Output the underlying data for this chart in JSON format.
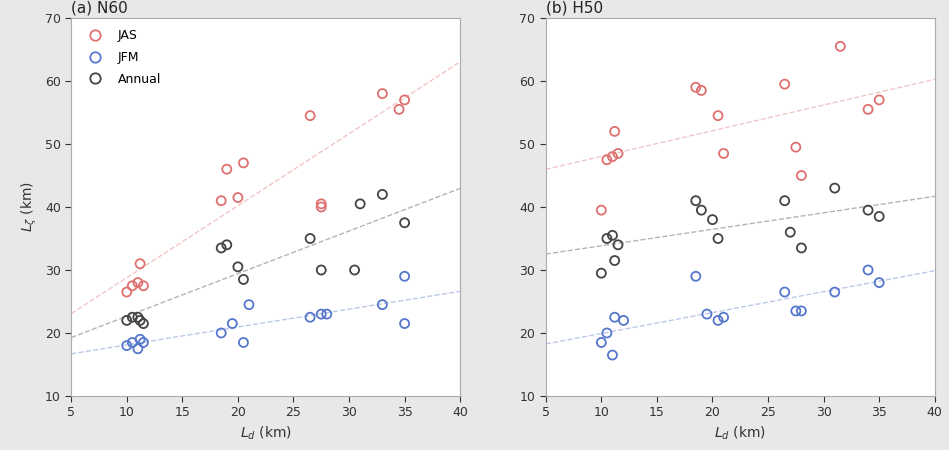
{
  "panel_a_title": "(a) N60",
  "panel_b_title": "(b) H50",
  "xlabel": "$L_d$ (km)",
  "ylabel": "$L_\\zeta$ (km)",
  "xlim": [
    5,
    40
  ],
  "ylim": [
    10,
    70
  ],
  "xticks": [
    5,
    10,
    15,
    20,
    25,
    30,
    35,
    40
  ],
  "yticks": [
    10,
    20,
    30,
    40,
    50,
    60,
    70
  ],
  "N60": {
    "JAS_x": [
      10.0,
      10.5,
      11.0,
      11.2,
      11.5,
      18.5,
      19.0,
      20.0,
      20.5,
      26.5,
      27.5,
      27.5,
      33.0,
      34.5,
      35.0
    ],
    "JAS_y": [
      26.5,
      27.5,
      28.0,
      31.0,
      27.5,
      41.0,
      46.0,
      41.5,
      47.0,
      54.5,
      40.0,
      40.5,
      58.0,
      55.5,
      57.0
    ],
    "JFM_x": [
      10.0,
      10.5,
      11.0,
      11.2,
      11.5,
      18.5,
      19.5,
      20.5,
      21.0,
      26.5,
      27.5,
      28.0,
      33.0,
      35.0,
      35.0
    ],
    "JFM_y": [
      18.0,
      18.5,
      17.5,
      19.0,
      18.5,
      20.0,
      21.5,
      18.5,
      24.5,
      22.5,
      23.0,
      23.0,
      24.5,
      29.0,
      21.5
    ],
    "Annual_x": [
      10.0,
      10.5,
      11.0,
      11.2,
      11.5,
      18.5,
      19.0,
      20.0,
      20.5,
      26.5,
      27.5,
      30.5,
      31.0,
      33.0,
      35.0
    ],
    "Annual_y": [
      22.0,
      22.5,
      22.5,
      22.0,
      21.5,
      33.5,
      34.0,
      30.5,
      28.5,
      35.0,
      30.0,
      30.0,
      40.5,
      42.0,
      37.5
    ]
  },
  "H50": {
    "JAS_x": [
      10.0,
      10.5,
      11.0,
      11.2,
      11.5,
      18.5,
      19.0,
      20.5,
      21.0,
      26.5,
      27.5,
      28.0,
      31.5,
      34.0,
      35.0
    ],
    "JAS_y": [
      39.5,
      47.5,
      48.0,
      52.0,
      48.5,
      59.0,
      58.5,
      54.5,
      48.5,
      59.5,
      49.5,
      45.0,
      65.5,
      55.5,
      57.0
    ],
    "JFM_x": [
      10.0,
      10.5,
      11.0,
      11.2,
      12.0,
      18.5,
      19.5,
      20.5,
      21.0,
      26.5,
      27.5,
      28.0,
      31.0,
      34.0,
      35.0
    ],
    "JFM_y": [
      18.5,
      20.0,
      16.5,
      22.5,
      22.0,
      29.0,
      23.0,
      22.0,
      22.5,
      26.5,
      23.5,
      23.5,
      26.5,
      30.0,
      28.0
    ],
    "Annual_x": [
      10.0,
      10.5,
      11.0,
      11.2,
      11.5,
      18.5,
      19.0,
      20.0,
      20.5,
      26.5,
      27.0,
      28.0,
      31.0,
      34.0,
      35.0
    ],
    "Annual_y": [
      29.5,
      35.0,
      35.5,
      31.5,
      34.0,
      41.0,
      39.5,
      38.0,
      35.0,
      41.0,
      36.0,
      33.5,
      43.0,
      39.5,
      38.5
    ]
  },
  "JAS_color": "#e07070",
  "JFM_color": "#5577cc",
  "Annual_color": "#444444",
  "trendline_alpha": 0.4,
  "marker_size": 6.5,
  "marker_linewidth": 1.3,
  "fig_bg_color": "#e8e8e8",
  "plot_bg_color": "#ffffff",
  "spine_color": "#aaaaaa",
  "tick_label_color": "#333333",
  "tick_label_size": 9,
  "label_fontsize": 10,
  "title_fontsize": 11
}
